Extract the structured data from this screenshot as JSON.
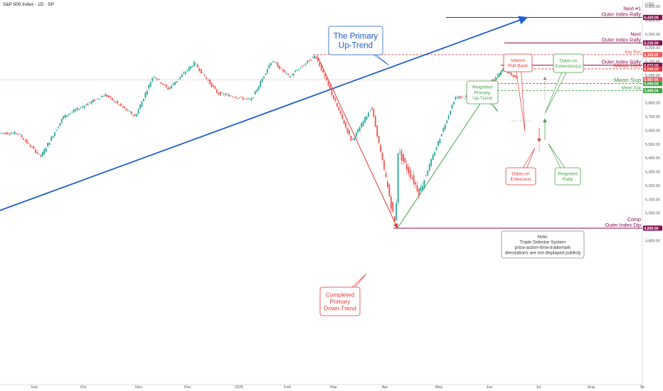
{
  "header": {
    "title": "S&P 500 Index · 1D · SP",
    "currency": "USD"
  },
  "chart_data": {
    "type": "candlestick",
    "title": "S&P 500 Index · 1D · SP",
    "x_ticks": [
      "Sep",
      "Oct",
      "Nov",
      "Dec",
      "2025",
      "Feb",
      "Mar",
      "Apr",
      "May",
      "Jun",
      "Jul",
      "Aug",
      "Se"
    ],
    "y_ticks": [
      "6,500.00",
      "6,400.00",
      "6,300.00",
      "6,200.00",
      "6,100.00",
      "6,000.00",
      "5,900.00",
      "5,800.00",
      "5,700.00",
      "5,600.00",
      "5,500.00",
      "5,400.00",
      "5,300.00",
      "5,200.00",
      "5,100.00",
      "5,000.00",
      "4,900.00",
      "4,800.00"
    ],
    "ylim": [
      4780,
      6560
    ],
    "price_path": [
      [
        "2024-08-23",
        5580
      ],
      [
        "2024-09-06",
        5410
      ],
      [
        "2024-09-20",
        5700
      ],
      [
        "2024-10-14",
        5860
      ],
      [
        "2024-10-31",
        5700
      ],
      [
        "2024-11-11",
        6000
      ],
      [
        "2024-11-20",
        5900
      ],
      [
        "2024-12-06",
        6090
      ],
      [
        "2024-12-20",
        5870
      ],
      [
        "2025-01-10",
        5820
      ],
      [
        "2025-01-23",
        6110
      ],
      [
        "2025-02-03",
        5990
      ],
      [
        "2025-02-19",
        6144
      ],
      [
        "2025-03-13",
        5520
      ],
      [
        "2025-03-25",
        5770
      ],
      [
        "2025-04-08",
        4890
      ],
      [
        "2025-04-09",
        5460
      ],
      [
        "2025-04-21",
        5150
      ],
      [
        "2025-05-12",
        5840
      ],
      [
        "2025-05-22",
        5840
      ],
      [
        "2025-06-11",
        6040
      ],
      [
        "2025-06-20",
        5967
      ]
    ],
    "levels": [
      {
        "label": "Next #1\nOuter Index Rally",
        "value": 6420,
        "tag": "6,420.00",
        "color": "#880e4f"
      },
      {
        "label": "Next\nOuter Index Rally",
        "value": 6235,
        "tag": "6,235.00",
        "color": "#880e4f"
      },
      {
        "label": "Key Res",
        "value": 6150,
        "tag": "6,150.00",
        "color": "#ef5350"
      },
      {
        "label": "Outer Index Rally",
        "value": 6073,
        "tag": "6,073.00",
        "color": "#880e4f"
      },
      {
        "label": "Mean Res",
        "value": 6046,
        "tag": "6,046.00",
        "color": "#e53935"
      },
      {
        "label": "",
        "value": 5967.95,
        "tag": "5,967.95",
        "color": "#f7525f"
      },
      {
        "label": "Mean Sup",
        "value": 5940,
        "tag": "5,940.00",
        "color": "#43a047"
      },
      {
        "label": "Mean Sup",
        "value": 5888,
        "tag": "5,888.00",
        "color": "#43a047"
      },
      {
        "label": "Comp\nOuter Index Dip",
        "value": 4890,
        "tag": "4,890.00",
        "color": "#880e4f"
      }
    ],
    "trend_lines": [
      {
        "name": "primary-up-trend",
        "color": "#1e5ecc",
        "from": [
          "2024-08-23",
          5585
        ],
        "to": [
          "2025-06-24",
          6420
        ]
      },
      {
        "name": "primary-down-trend",
        "color": "#e53935",
        "from": [
          "2025-02-19",
          6144
        ],
        "to": [
          "2025-04-08",
          4890
        ]
      },
      {
        "name": "reignited-up-trend",
        "color": "#43a047",
        "from": [
          "2025-04-08",
          4890
        ],
        "to": [
          "2025-06-11",
          6073
        ]
      }
    ],
    "annotations": [
      {
        "text": "The Primary\nUp-Trend",
        "style": "blue"
      },
      {
        "text": "Reignited\nPrimary\nUp-Trend",
        "style": "green"
      },
      {
        "text": "Interim\nPull-Back",
        "style": "red"
      },
      {
        "text": "Odds-on\nExtension(s)",
        "style": "green"
      },
      {
        "text": "Odds-on\nExtension",
        "style": "red"
      },
      {
        "text": "Reignited\nRally",
        "style": "green"
      },
      {
        "text": "Completed\nPrimary\nDown-Trend",
        "style": "red"
      },
      {
        "text": "Note:\nTrade Selector System\nprice-action-time-trademark\ndenotations are not displayed publicly",
        "style": "note"
      }
    ],
    "colors": {
      "up": "#26a69a",
      "down": "#ef5350"
    }
  }
}
